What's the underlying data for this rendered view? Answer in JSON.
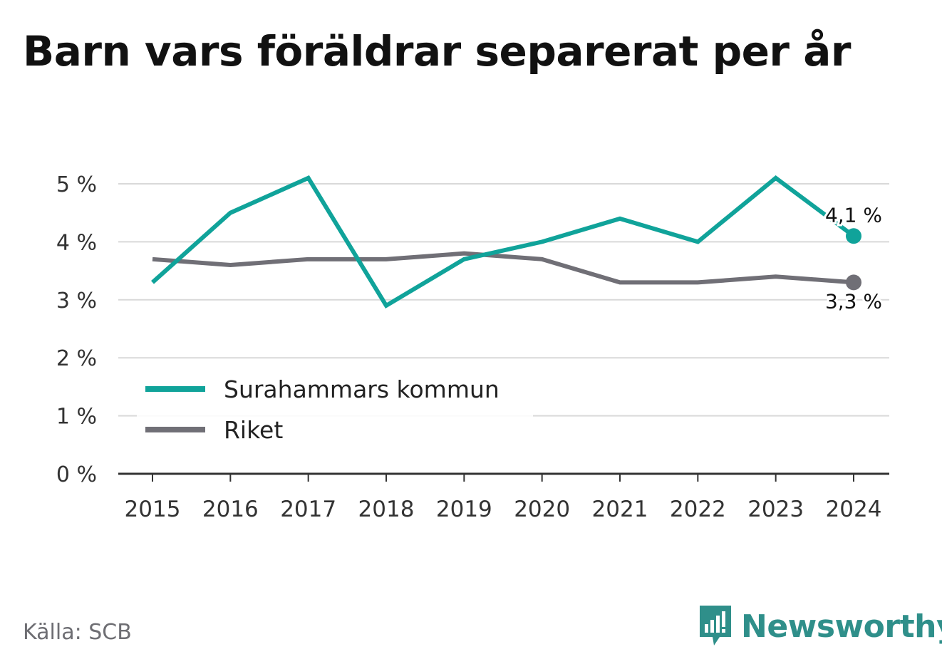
{
  "title": "Barn vars föräldrar separerat per år",
  "source": "Källa: SCB",
  "brand": {
    "name": "Newsworthy",
    "icon": "newsworthy-logo-icon",
    "color": "#2f8f8a"
  },
  "chart_data": {
    "type": "line",
    "x": [
      "2015",
      "2016",
      "2017",
      "2018",
      "2019",
      "2020",
      "2021",
      "2022",
      "2023",
      "2024"
    ],
    "ylim": [
      0,
      5
    ],
    "yticks": [
      0,
      1,
      2,
      3,
      4,
      5
    ],
    "ytick_labels": [
      "0 %",
      "1 %",
      "2 %",
      "3 %",
      "4 %",
      "5 %"
    ],
    "grid": true,
    "legend_position": "bottom-left",
    "series": [
      {
        "name": "Surahammars kommun",
        "color": "#10a39a",
        "values": [
          3.3,
          4.5,
          5.1,
          2.9,
          3.7,
          4.0,
          4.4,
          4.0,
          5.1,
          4.1
        ],
        "end_label": "4,1 %"
      },
      {
        "name": "Riket",
        "color": "#706f76",
        "values": [
          3.7,
          3.6,
          3.7,
          3.7,
          3.8,
          3.7,
          3.3,
          3.3,
          3.4,
          3.3
        ],
        "end_label": "3,3 %"
      }
    ]
  }
}
